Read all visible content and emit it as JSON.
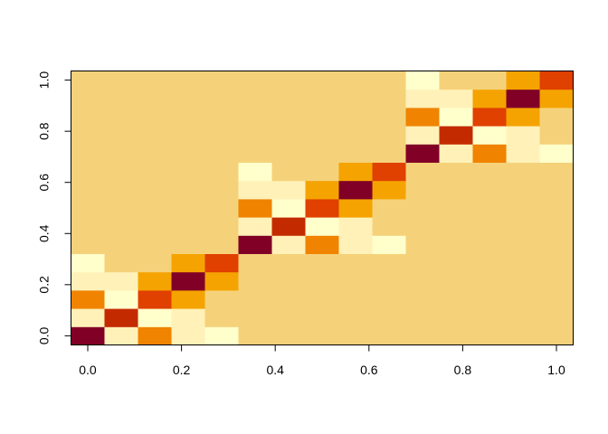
{
  "chart_data": {
    "type": "heatmap",
    "x": [
      0,
      0.0714,
      0.1429,
      0.2143,
      0.2857,
      0.3571,
      0.4286,
      0.5,
      0.5714,
      0.6429,
      0.7143,
      0.7857,
      0.8571,
      0.9286,
      1
    ],
    "y": [
      0,
      0.0714,
      0.1429,
      0.2143,
      0.2857,
      0.3571,
      0.4286,
      0.5,
      0.5714,
      0.6429,
      0.7143,
      0.7857,
      0.8571,
      0.9286,
      1
    ],
    "z": [
      [
        1,
        6,
        4,
        6,
        7,
        0,
        0,
        0,
        0,
        0,
        0,
        0,
        0,
        0,
        0
      ],
      [
        6,
        2,
        7,
        6,
        0,
        0,
        0,
        0,
        0,
        0,
        0,
        0,
        0,
        0,
        0
      ],
      [
        4,
        7,
        3,
        5,
        0,
        0,
        0,
        0,
        0,
        0,
        0,
        0,
        0,
        0,
        0
      ],
      [
        6,
        6,
        5,
        1,
        5,
        0,
        0,
        0,
        0,
        0,
        0,
        0,
        0,
        0,
        0
      ],
      [
        7,
        0,
        0,
        5,
        3,
        0,
        0,
        0,
        0,
        0,
        0,
        0,
        0,
        0,
        0
      ],
      [
        0,
        0,
        0,
        0,
        0,
        1,
        6,
        4,
        6,
        7,
        0,
        0,
        0,
        0,
        0
      ],
      [
        0,
        0,
        0,
        0,
        0,
        6,
        2,
        7,
        6,
        0,
        0,
        0,
        0,
        0,
        0
      ],
      [
        0,
        0,
        0,
        0,
        0,
        4,
        7,
        3,
        5,
        0,
        0,
        0,
        0,
        0,
        0
      ],
      [
        0,
        0,
        0,
        0,
        0,
        6,
        6,
        5,
        1,
        5,
        0,
        0,
        0,
        0,
        0
      ],
      [
        0,
        0,
        0,
        0,
        0,
        7,
        0,
        0,
        5,
        3,
        0,
        0,
        0,
        0,
        0
      ],
      [
        0,
        0,
        0,
        0,
        0,
        0,
        0,
        0,
        0,
        0,
        1,
        6,
        4,
        6,
        7
      ],
      [
        0,
        0,
        0,
        0,
        0,
        0,
        0,
        0,
        0,
        0,
        6,
        2,
        7,
        6,
        0
      ],
      [
        0,
        0,
        0,
        0,
        0,
        0,
        0,
        0,
        0,
        0,
        4,
        7,
        3,
        5,
        0
      ],
      [
        0,
        0,
        0,
        0,
        0,
        0,
        0,
        0,
        0,
        0,
        6,
        6,
        5,
        1,
        5
      ],
      [
        0,
        0,
        0,
        0,
        0,
        0,
        0,
        0,
        0,
        0,
        7,
        0,
        0,
        5,
        3
      ]
    ],
    "colors": [
      "#F5D27A",
      "#800026",
      "#C42A00",
      "#E04000",
      "#F08300",
      "#F5A300",
      "#FFF1B8",
      "#FFFFCC"
    ],
    "xlim": [
      -0.0357,
      1.0357
    ],
    "ylim": [
      -0.0357,
      1.0357
    ],
    "xticks": [
      {
        "value": 0,
        "label": "0.0"
      },
      {
        "value": 0.2,
        "label": "0.2"
      },
      {
        "value": 0.4,
        "label": "0.4"
      },
      {
        "value": 0.6,
        "label": "0.6"
      },
      {
        "value": 0.8,
        "label": "0.8"
      },
      {
        "value": 1,
        "label": "1.0"
      }
    ],
    "yticks": [
      {
        "value": 0,
        "label": "0.0"
      },
      {
        "value": 0.2,
        "label": "0.2"
      },
      {
        "value": 0.4,
        "label": "0.4"
      },
      {
        "value": 0.6,
        "label": "0.6"
      },
      {
        "value": 0.8,
        "label": "0.8"
      },
      {
        "value": 1,
        "label": "1.0"
      }
    ]
  }
}
